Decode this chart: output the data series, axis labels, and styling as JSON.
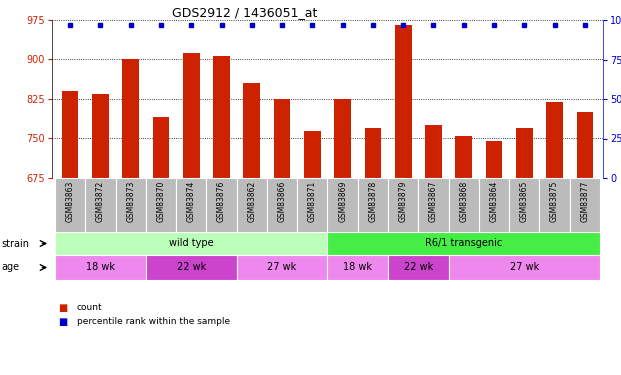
{
  "title": "GDS2912 / 1436051_at",
  "samples": [
    "GSM83863",
    "GSM83872",
    "GSM83873",
    "GSM83870",
    "GSM83874",
    "GSM83876",
    "GSM83862",
    "GSM83866",
    "GSM83871",
    "GSM83869",
    "GSM83878",
    "GSM83879",
    "GSM83867",
    "GSM83868",
    "GSM83864",
    "GSM83865",
    "GSM83875",
    "GSM83877"
  ],
  "counts": [
    840,
    835,
    900,
    790,
    912,
    906,
    855,
    825,
    765,
    825,
    770,
    965,
    775,
    755,
    745,
    770,
    820,
    800
  ],
  "percentiles": [
    97,
    97,
    97,
    97,
    97,
    97,
    97,
    97,
    97,
    97,
    97,
    97,
    97,
    97,
    97,
    97,
    97,
    97
  ],
  "ylim_left": [
    675,
    975
  ],
  "ylim_right": [
    0,
    100
  ],
  "yticks_left": [
    675,
    750,
    825,
    900,
    975
  ],
  "yticks_right": [
    0,
    25,
    50,
    75,
    100
  ],
  "bar_color": "#cc2200",
  "dot_color": "#0000cc",
  "bg_color": "#ffffff",
  "tick_label_color": "#cc2200",
  "right_axis_color": "#0000cc",
  "xticklabel_bg": "#bbbbbb",
  "strain_groups": [
    {
      "label": "wild type",
      "start": 0,
      "end": 9,
      "color": "#bbffbb"
    },
    {
      "label": "R6/1 transgenic",
      "start": 9,
      "end": 18,
      "color": "#44ee44"
    }
  ],
  "age_groups": [
    {
      "label": "18 wk",
      "start": 0,
      "end": 3,
      "color": "#ee88ee"
    },
    {
      "label": "22 wk",
      "start": 3,
      "end": 6,
      "color": "#cc44cc"
    },
    {
      "label": "27 wk",
      "start": 6,
      "end": 9,
      "color": "#ee88ee"
    },
    {
      "label": "18 wk",
      "start": 9,
      "end": 11,
      "color": "#ee88ee"
    },
    {
      "label": "22 wk",
      "start": 11,
      "end": 13,
      "color": "#cc44cc"
    },
    {
      "label": "27 wk",
      "start": 13,
      "end": 18,
      "color": "#ee88ee"
    }
  ]
}
